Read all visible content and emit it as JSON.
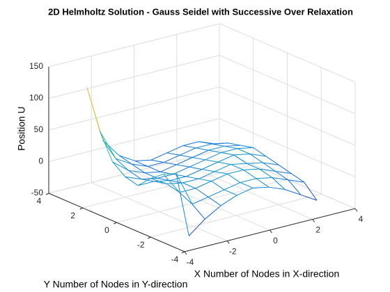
{
  "chart_data": {
    "type": "surface",
    "title": "2D Helmholtz Solution -  Gauss Seidel with Successive Over Relaxation",
    "x_label": "X Number of Nodes in X-direction",
    "y_label": "Y Number of Nodes in Y-direction",
    "z_label": "Position U",
    "x": [
      -3,
      -2.25,
      -1.5,
      -0.75,
      0,
      0.75,
      1.5,
      2.25,
      3
    ],
    "y": [
      -3,
      -2.25,
      -1.5,
      -0.75,
      0,
      0.75,
      1.5,
      2.25,
      3
    ],
    "z": [
      [
        -45,
        -25,
        -10,
        0,
        5,
        0,
        -10,
        -25,
        -40
      ],
      [
        45,
        -10,
        -5,
        0,
        5,
        5,
        0,
        -10,
        -20
      ],
      [
        35,
        0,
        0,
        5,
        10,
        10,
        5,
        -5,
        -15
      ],
      [
        20,
        5,
        0,
        0,
        5,
        10,
        5,
        0,
        -10
      ],
      [
        0,
        0,
        -5,
        -5,
        0,
        5,
        10,
        5,
        -5
      ],
      [
        5,
        -5,
        -10,
        -10,
        -5,
        0,
        5,
        5,
        0
      ],
      [
        20,
        0,
        -10,
        -15,
        -10,
        -5,
        0,
        0,
        -5
      ],
      [
        60,
        10,
        -5,
        -15,
        -15,
        -10,
        -5,
        -5,
        -10
      ],
      [
        120,
        30,
        0,
        -15,
        -20,
        -15,
        -10,
        -10,
        -20
      ]
    ],
    "colormap": [
      "#352a87",
      "#0f5cdd",
      "#1481d6",
      "#06a4ca",
      "#2eb7a4",
      "#87bf77",
      "#d1bb59",
      "#fec832",
      "#f9fb0e"
    ],
    "xlim": [
      -4,
      4
    ],
    "ylim": [
      -4,
      4
    ],
    "zlim": [
      -50,
      150
    ],
    "xticks": [
      -4,
      -2,
      0,
      2,
      4
    ],
    "yticks": [
      -4,
      -2,
      0,
      2,
      4
    ],
    "zticks": [
      -50,
      0,
      50,
      100,
      150
    ],
    "grid": true
  }
}
